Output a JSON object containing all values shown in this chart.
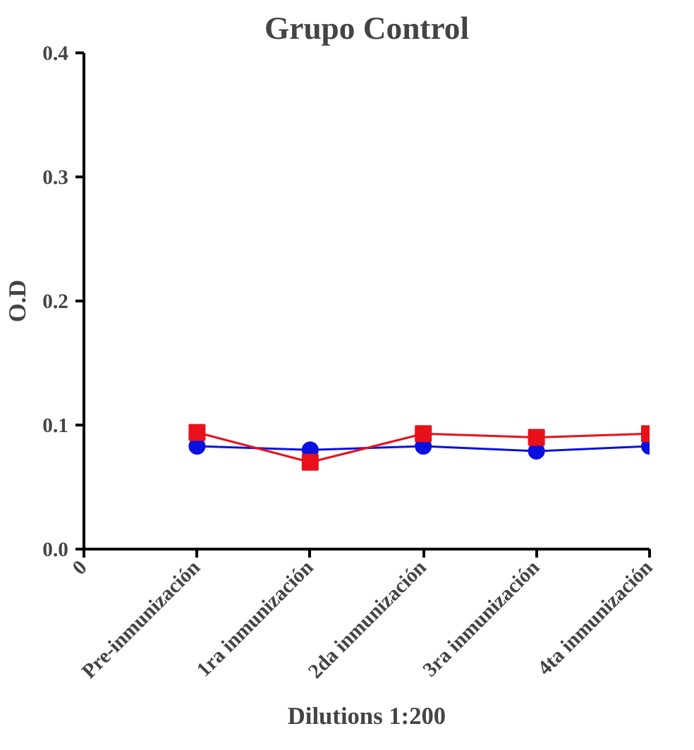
{
  "chart_data": {
    "type": "line",
    "title": "Grupo Control",
    "xlabel": "Dilutions 1:200",
    "ylabel": "O.D",
    "categories": [
      "0",
      "Pre-inmunización",
      "1ra inmunización",
      "2da inmunización",
      "3ra inmunización",
      "4ta inmunización"
    ],
    "ylim": [
      0,
      0.4
    ],
    "yticks": [
      {
        "value": 0,
        "label": "0.0"
      },
      0.1,
      0.2,
      0.3,
      0.4
    ],
    "series": [
      {
        "color": "#0a10e0",
        "marker": "circle",
        "values": [
          null,
          0.083,
          0.08,
          0.083,
          0.079,
          0.083
        ]
      },
      {
        "color": "#e8101a",
        "marker": "square",
        "values": [
          null,
          0.094,
          0.07,
          0.093,
          0.09,
          0.093
        ]
      }
    ],
    "grid": false,
    "line_style": "solid"
  }
}
